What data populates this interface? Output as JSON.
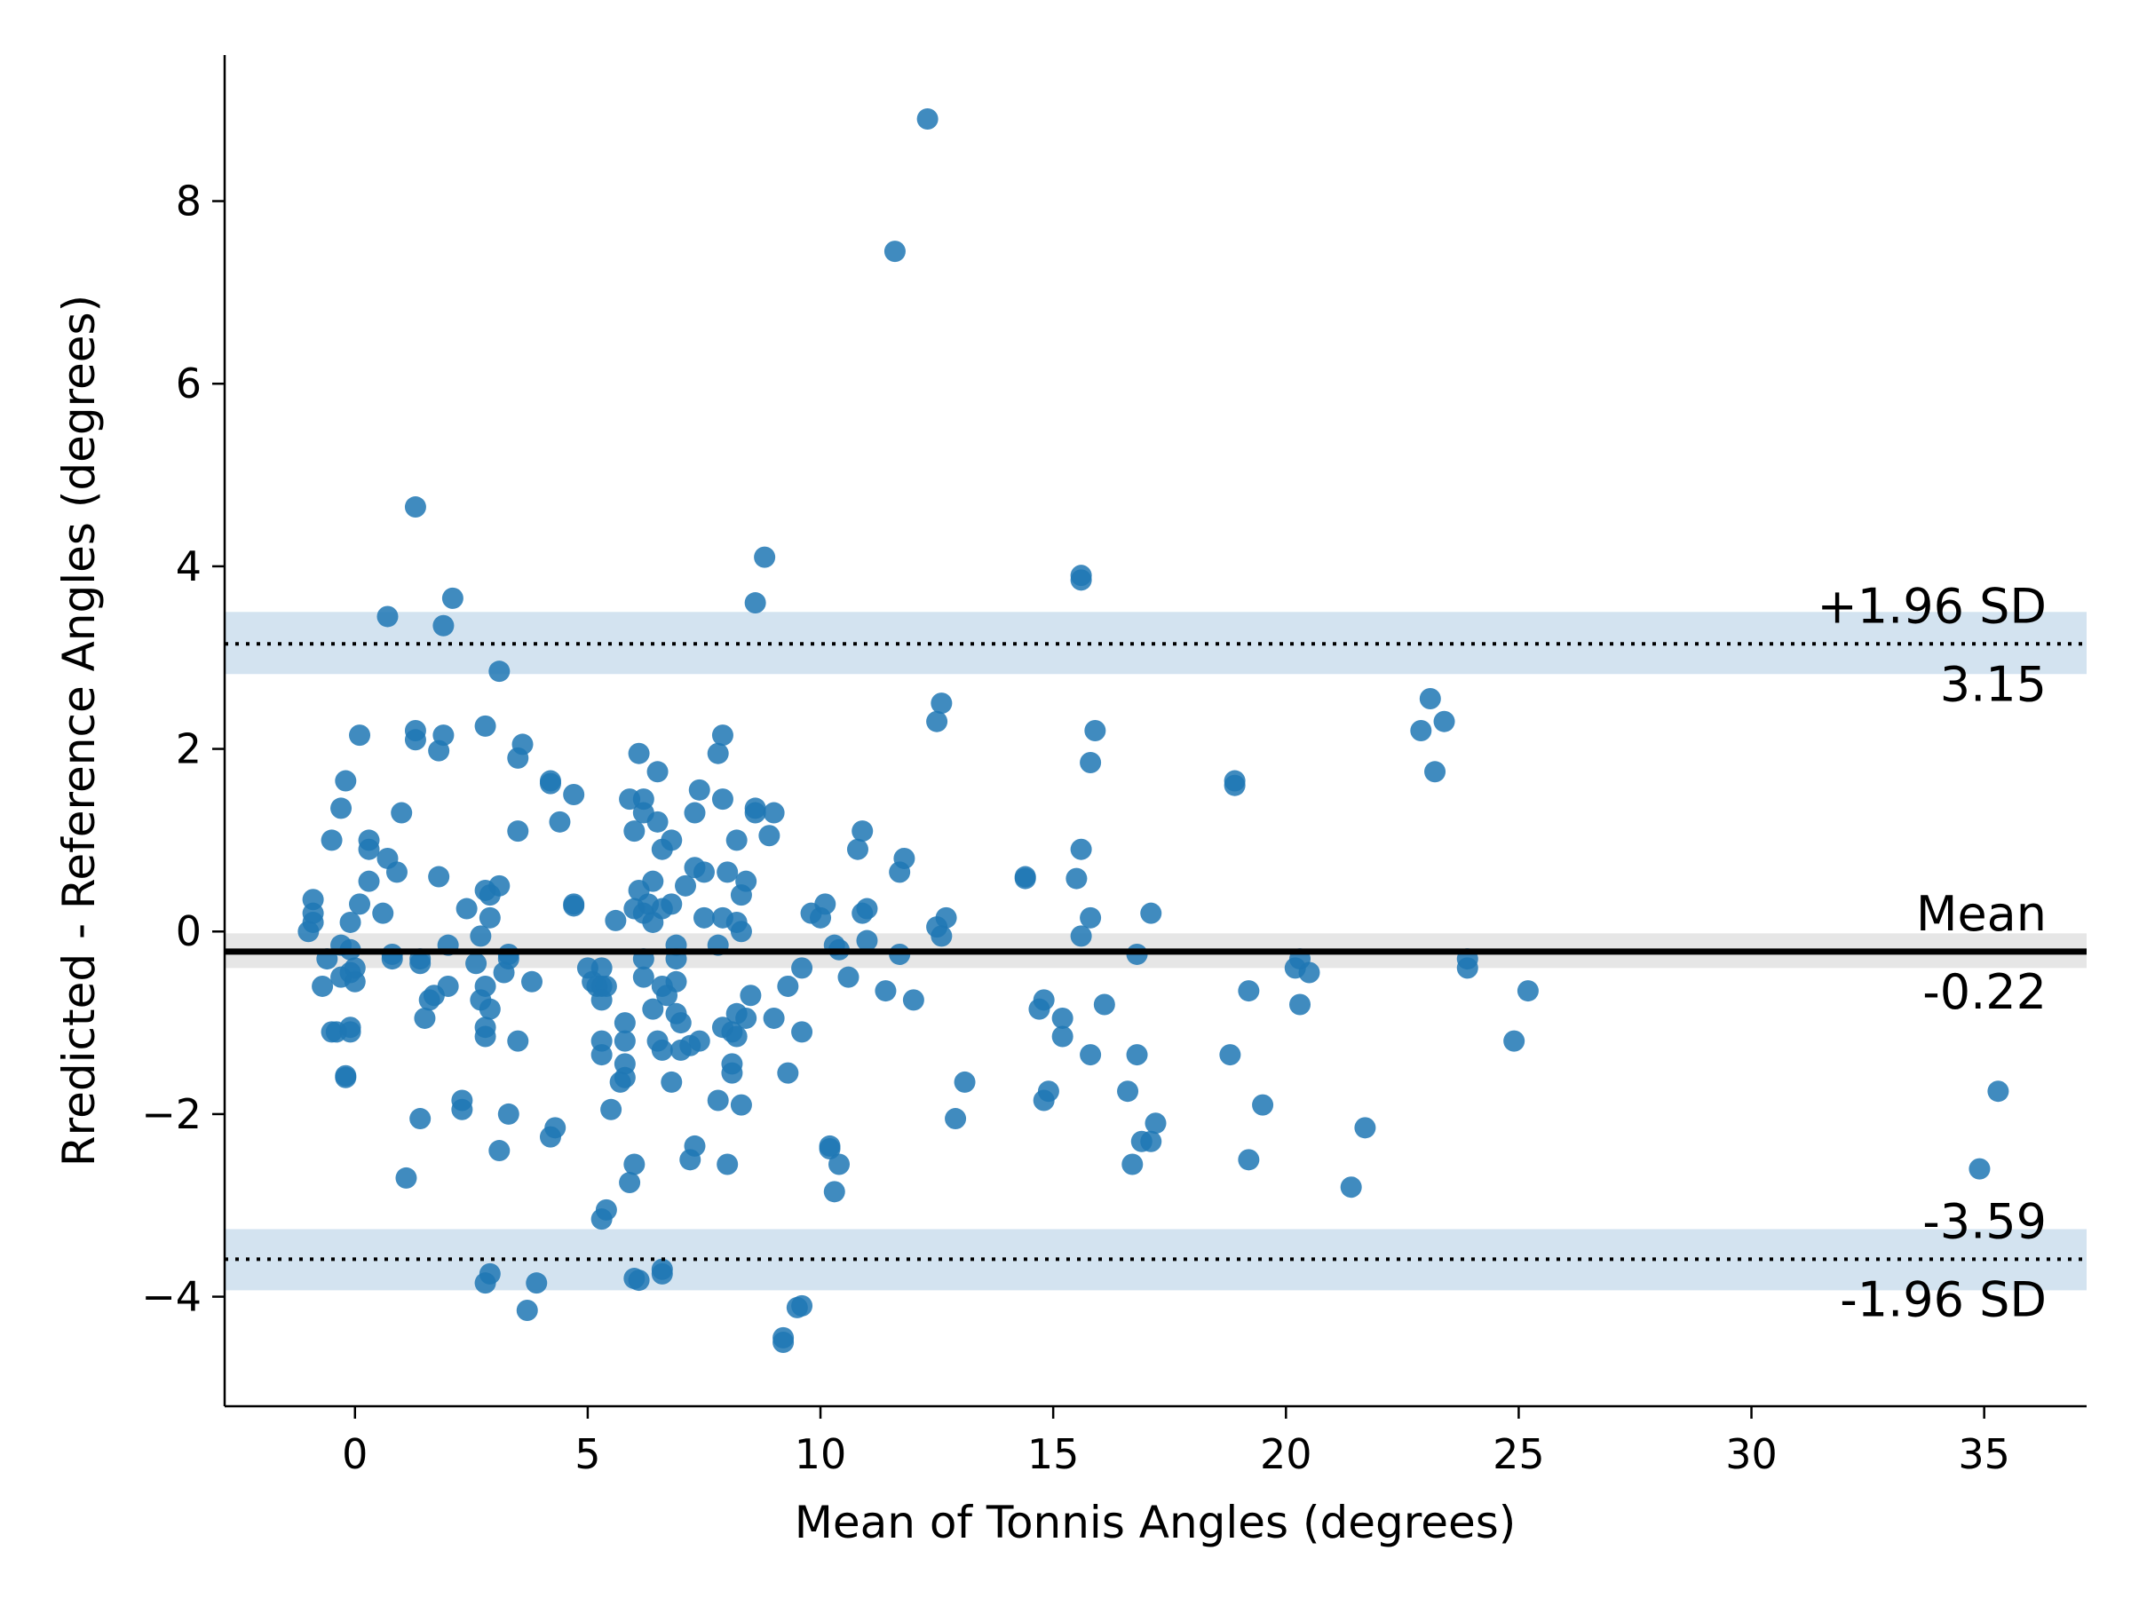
{
  "chart_data": {
    "type": "scatter",
    "title": "",
    "xlabel": "Mean of Tonnis Angles (degrees)",
    "ylabel": "Rredicted - Reference Angles (degrees)",
    "xlim": [
      -2.8,
      37.2
    ],
    "ylim": [
      -5.2,
      9.6
    ],
    "xticks": [
      0,
      5,
      10,
      15,
      20,
      25,
      30,
      35
    ],
    "yticks": [
      -4,
      -2,
      0,
      2,
      4,
      6,
      8
    ],
    "xtick_labels": [
      "0",
      "5",
      "10",
      "15",
      "20",
      "25",
      "30",
      "35"
    ],
    "ytick_labels": [
      "−4",
      "−2",
      "0",
      "2",
      "4",
      "6",
      "8"
    ],
    "grid": false,
    "point_color": "#1f77b4",
    "mean_line": {
      "value": -0.22,
      "ci": [
        -0.4,
        -0.02
      ],
      "label_top": "Mean",
      "label_bottom": "-0.22",
      "color": "#000000",
      "band_color": "#e6e6e6"
    },
    "upper_loa": {
      "value": 3.15,
      "ci": [
        2.82,
        3.5
      ],
      "label_top": "+1.96 SD",
      "label_bottom": "3.15",
      "band_color": "#d3e3f0"
    },
    "lower_loa": {
      "value": -3.59,
      "ci": [
        -3.93,
        -3.26
      ],
      "label_top": "-3.59",
      "label_bottom": "-1.96 SD",
      "band_color": "#d3e3f0"
    },
    "series": [
      {
        "points": [
          [
            12.3,
            8.9
          ],
          [
            11.6,
            7.45
          ],
          [
            1.3,
            4.65
          ],
          [
            8.8,
            4.1
          ],
          [
            2.1,
            3.65
          ],
          [
            15.6,
            3.9
          ],
          [
            15.6,
            3.85
          ],
          [
            8.6,
            3.6
          ],
          [
            0.7,
            3.45
          ],
          [
            1.9,
            3.35
          ],
          [
            3.1,
            2.85
          ],
          [
            23.1,
            2.55
          ],
          [
            12.6,
            2.5
          ],
          [
            12.5,
            2.3
          ],
          [
            23.4,
            2.3
          ],
          [
            22.9,
            2.2
          ],
          [
            15.9,
            2.2
          ],
          [
            0.1,
            2.15
          ],
          [
            1.3,
            2.2
          ],
          [
            1.3,
            2.1
          ],
          [
            1.9,
            2.15
          ],
          [
            2.8,
            2.25
          ],
          [
            7.9,
            2.15
          ],
          [
            1.8,
            1.98
          ],
          [
            3.6,
            2.05
          ],
          [
            3.5,
            1.9
          ],
          [
            7.8,
            1.95
          ],
          [
            6.1,
            1.95
          ],
          [
            15.8,
            1.85
          ],
          [
            23.2,
            1.75
          ],
          [
            6.5,
            1.75
          ],
          [
            -0.2,
            1.65
          ],
          [
            4.2,
            1.65
          ],
          [
            4.2,
            1.62
          ],
          [
            18.9,
            1.65
          ],
          [
            18.9,
            1.6
          ],
          [
            7.4,
            1.55
          ],
          [
            4.7,
            1.5
          ],
          [
            5.9,
            1.45
          ],
          [
            6.2,
            1.45
          ],
          [
            7.9,
            1.45
          ],
          [
            -0.3,
            1.35
          ],
          [
            1.0,
            1.3
          ],
          [
            6.2,
            1.3
          ],
          [
            7.3,
            1.3
          ],
          [
            8.6,
            1.35
          ],
          [
            8.6,
            1.3
          ],
          [
            9.0,
            1.3
          ],
          [
            3.5,
            1.1
          ],
          [
            4.4,
            1.2
          ],
          [
            6.0,
            1.1
          ],
          [
            6.5,
            1.2
          ],
          [
            8.2,
            1.0
          ],
          [
            8.9,
            1.05
          ],
          [
            10.9,
            1.1
          ],
          [
            -0.5,
            1.0
          ],
          [
            0.3,
            1.0
          ],
          [
            0.3,
            0.9
          ],
          [
            6.8,
            1.0
          ],
          [
            6.6,
            0.9
          ],
          [
            10.8,
            0.9
          ],
          [
            15.6,
            0.9
          ],
          [
            0.7,
            0.8
          ],
          [
            7.3,
            0.7
          ],
          [
            7.5,
            0.65
          ],
          [
            8.0,
            0.65
          ],
          [
            11.8,
            0.8
          ],
          [
            11.7,
            0.65
          ],
          [
            0.9,
            0.65
          ],
          [
            1.8,
            0.6
          ],
          [
            14.4,
            0.6
          ],
          [
            14.4,
            0.58
          ],
          [
            15.5,
            0.58
          ],
          [
            0.3,
            0.55
          ],
          [
            3.1,
            0.5
          ],
          [
            6.4,
            0.55
          ],
          [
            8.4,
            0.55
          ],
          [
            2.8,
            0.45
          ],
          [
            2.9,
            0.4
          ],
          [
            6.1,
            0.45
          ],
          [
            7.1,
            0.5
          ],
          [
            8.3,
            0.4
          ],
          [
            6.3,
            0.3
          ],
          [
            4.7,
            0.3
          ],
          [
            4.7,
            0.28
          ],
          [
            6.8,
            0.3
          ],
          [
            10.1,
            0.3
          ],
          [
            11.0,
            0.25
          ],
          [
            -0.9,
            0.35
          ],
          [
            0.1,
            0.3
          ],
          [
            2.4,
            0.25
          ],
          [
            6.0,
            0.25
          ],
          [
            6.6,
            0.25
          ],
          [
            9.8,
            0.2
          ],
          [
            10.0,
            0.15
          ],
          [
            10.9,
            0.2
          ],
          [
            12.7,
            0.15
          ],
          [
            15.8,
            0.15
          ],
          [
            17.1,
            0.2
          ],
          [
            -0.9,
            0.2
          ],
          [
            -0.9,
            0.1
          ],
          [
            -1.0,
            0.0
          ],
          [
            -0.1,
            0.1
          ],
          [
            0.6,
            0.2
          ],
          [
            2.9,
            0.15
          ],
          [
            5.6,
            0.12
          ],
          [
            6.4,
            0.1
          ],
          [
            6.2,
            0.2
          ],
          [
            7.5,
            0.15
          ],
          [
            7.9,
            0.15
          ],
          [
            8.2,
            0.1
          ],
          [
            8.3,
            0.0
          ],
          [
            12.5,
            0.05
          ],
          [
            12.6,
            -0.05
          ],
          [
            15.6,
            -0.05
          ],
          [
            2.7,
            -0.05
          ],
          [
            -0.3,
            -0.15
          ],
          [
            -0.1,
            -0.2
          ],
          [
            2.0,
            -0.15
          ],
          [
            11.0,
            -0.1
          ],
          [
            10.3,
            -0.15
          ],
          [
            10.4,
            -0.2
          ],
          [
            7.8,
            -0.15
          ],
          [
            6.9,
            -0.15
          ],
          [
            0.8,
            -0.25
          ],
          [
            0.8,
            -0.3
          ],
          [
            1.4,
            -0.3
          ],
          [
            1.4,
            -0.35
          ],
          [
            3.3,
            -0.25
          ],
          [
            3.3,
            -0.3
          ],
          [
            2.6,
            -0.35
          ],
          [
            6.2,
            -0.3
          ],
          [
            6.9,
            -0.3
          ],
          [
            11.7,
            -0.25
          ],
          [
            16.8,
            -0.25
          ],
          [
            20.3,
            -0.3
          ],
          [
            23.9,
            -0.3
          ],
          [
            -0.6,
            -0.3
          ],
          [
            -0.3,
            -0.5
          ],
          [
            -0.1,
            -0.45
          ],
          [
            0.0,
            -0.4
          ],
          [
            3.2,
            -0.45
          ],
          [
            5.0,
            -0.4
          ],
          [
            5.3,
            -0.4
          ],
          [
            5.1,
            -0.55
          ],
          [
            5.3,
            -0.6
          ],
          [
            6.2,
            -0.5
          ],
          [
            6.9,
            -0.55
          ],
          [
            9.6,
            -0.4
          ],
          [
            10.6,
            -0.5
          ],
          [
            20.2,
            -0.4
          ],
          [
            20.5,
            -0.45
          ],
          [
            23.9,
            -0.4
          ],
          [
            -0.7,
            -0.6
          ],
          [
            0.0,
            -0.55
          ],
          [
            2.0,
            -0.6
          ],
          [
            2.8,
            -0.6
          ],
          [
            3.8,
            -0.55
          ],
          [
            5.2,
            -0.6
          ],
          [
            5.4,
            -0.6
          ],
          [
            6.6,
            -0.6
          ],
          [
            9.3,
            -0.6
          ],
          [
            11.4,
            -0.65
          ],
          [
            12.0,
            -0.75
          ],
          [
            8.5,
            -0.7
          ],
          [
            6.7,
            -0.7
          ],
          [
            1.7,
            -0.7
          ],
          [
            1.6,
            -0.75
          ],
          [
            2.7,
            -0.75
          ],
          [
            5.3,
            -0.75
          ],
          [
            14.8,
            -0.75
          ],
          [
            16.1,
            -0.8
          ],
          [
            19.2,
            -0.65
          ],
          [
            20.3,
            -0.8
          ],
          [
            25.2,
            -0.65
          ],
          [
            2.9,
            -0.85
          ],
          [
            6.4,
            -0.85
          ],
          [
            6.9,
            -0.9
          ],
          [
            8.2,
            -0.9
          ],
          [
            8.4,
            -0.95
          ],
          [
            9.0,
            -0.95
          ],
          [
            14.7,
            -0.85
          ],
          [
            15.2,
            -0.95
          ],
          [
            1.5,
            -0.95
          ],
          [
            -0.1,
            -1.05
          ],
          [
            5.8,
            -1.0
          ],
          [
            7.0,
            -1.0
          ],
          [
            7.9,
            -1.05
          ],
          [
            8.1,
            -1.1
          ],
          [
            -0.5,
            -1.1
          ],
          [
            -0.4,
            -1.1
          ],
          [
            -0.1,
            -1.1
          ],
          [
            2.8,
            -1.05
          ],
          [
            2.8,
            -1.15
          ],
          [
            3.5,
            -1.2
          ],
          [
            5.3,
            -1.2
          ],
          [
            5.8,
            -1.2
          ],
          [
            6.5,
            -1.2
          ],
          [
            7.4,
            -1.2
          ],
          [
            7.2,
            -1.25
          ],
          [
            7.0,
            -1.3
          ],
          [
            8.2,
            -1.15
          ],
          [
            9.6,
            -1.1
          ],
          [
            15.2,
            -1.15
          ],
          [
            24.9,
            -1.2
          ],
          [
            5.3,
            -1.35
          ],
          [
            5.8,
            -1.45
          ],
          [
            6.6,
            -1.3
          ],
          [
            8.1,
            -1.45
          ],
          [
            8.1,
            -1.55
          ],
          [
            15.8,
            -1.35
          ],
          [
            16.8,
            -1.35
          ],
          [
            18.8,
            -1.35
          ],
          [
            -0.2,
            -1.6
          ],
          [
            -0.2,
            -1.58
          ],
          [
            5.7,
            -1.65
          ],
          [
            5.8,
            -1.6
          ],
          [
            6.8,
            -1.65
          ],
          [
            9.3,
            -1.55
          ],
          [
            13.1,
            -1.65
          ],
          [
            14.9,
            -1.75
          ],
          [
            14.8,
            -1.85
          ],
          [
            16.6,
            -1.75
          ],
          [
            35.3,
            -1.75
          ],
          [
            2.3,
            -1.85
          ],
          [
            2.3,
            -1.95
          ],
          [
            7.8,
            -1.85
          ],
          [
            8.3,
            -1.9
          ],
          [
            19.5,
            -1.9
          ],
          [
            1.4,
            -2.05
          ],
          [
            3.3,
            -2.0
          ],
          [
            5.5,
            -1.95
          ],
          [
            12.9,
            -2.05
          ],
          [
            17.2,
            -2.1
          ],
          [
            21.7,
            -2.15
          ],
          [
            4.3,
            -2.15
          ],
          [
            4.2,
            -2.25
          ],
          [
            7.3,
            -2.35
          ],
          [
            10.2,
            -2.35
          ],
          [
            10.2,
            -2.38
          ],
          [
            16.9,
            -2.3
          ],
          [
            17.1,
            -2.3
          ],
          [
            3.1,
            -2.4
          ],
          [
            7.2,
            -2.5
          ],
          [
            8.0,
            -2.55
          ],
          [
            6.0,
            -2.55
          ],
          [
            10.4,
            -2.55
          ],
          [
            16.7,
            -2.55
          ],
          [
            19.2,
            -2.5
          ],
          [
            34.9,
            -2.6
          ],
          [
            1.1,
            -2.7
          ],
          [
            5.9,
            -2.75
          ],
          [
            10.3,
            -2.85
          ],
          [
            21.4,
            -2.8
          ],
          [
            5.4,
            -3.05
          ],
          [
            5.3,
            -3.15
          ],
          [
            2.9,
            -3.75
          ],
          [
            6.6,
            -3.7
          ],
          [
            6.6,
            -3.75
          ],
          [
            2.8,
            -3.85
          ],
          [
            3.9,
            -3.85
          ],
          [
            6.0,
            -3.8
          ],
          [
            6.1,
            -3.82
          ],
          [
            3.7,
            -4.15
          ],
          [
            9.6,
            -4.1
          ],
          [
            9.5,
            -4.12
          ],
          [
            9.2,
            -4.45
          ],
          [
            9.2,
            -4.5
          ]
        ]
      }
    ]
  }
}
